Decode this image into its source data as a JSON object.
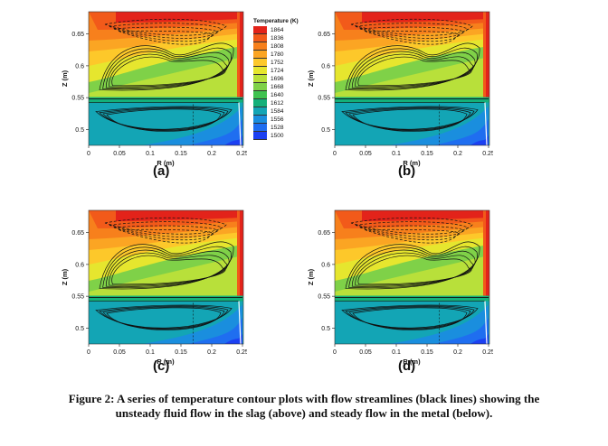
{
  "panels": [
    {
      "id": "a",
      "label": "(a)"
    },
    {
      "id": "b",
      "label": "(b)"
    },
    {
      "id": "c",
      "label": "(c)"
    },
    {
      "id": "d",
      "label": "(d)"
    }
  ],
  "axes": {
    "xlabel": "R (m)",
    "ylabel": "Z (m)",
    "xticks": [
      "0",
      "0.05",
      "0.1",
      "0.15",
      "0.2",
      "0.25"
    ],
    "yticks": [
      "0.65",
      "0.6",
      "0.55",
      "0.5"
    ]
  },
  "legend": {
    "title": "Temperature (K)",
    "levels": [
      "1864",
      "1836",
      "1808",
      "1780",
      "1752",
      "1724",
      "1696",
      "1668",
      "1640",
      "1612",
      "1584",
      "1556",
      "1528",
      "1500"
    ],
    "colors": [
      "#e3231a",
      "#f25a1a",
      "#f7801c",
      "#fba523",
      "#fdc82a",
      "#e6e62e",
      "#b8e03a",
      "#7fd148",
      "#3fc24f",
      "#14b07a",
      "#13a5b5",
      "#1a8ede",
      "#1f6ef0",
      "#1c40f2"
    ]
  },
  "caption": {
    "line1": "Figure 2: A series of temperature contour plots with flow streamlines (black lines) showing the",
    "line2": "unsteady fluid flow in the slag (above) and steady flow in the metal (below)."
  }
}
